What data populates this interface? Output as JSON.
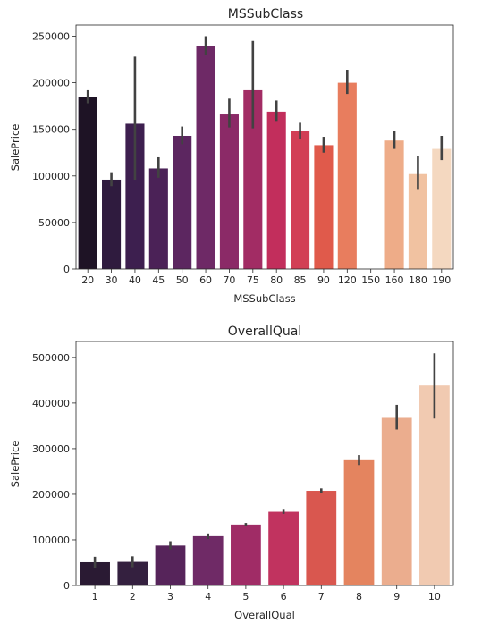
{
  "chart_data": [
    {
      "type": "bar",
      "title": "MSSubClass",
      "xlabel": "MSSubClass",
      "ylabel": "SalePrice",
      "ylim": [
        0,
        262000
      ],
      "yticks": [
        0,
        50000,
        100000,
        150000,
        200000,
        250000
      ],
      "categories": [
        "20",
        "30",
        "40",
        "45",
        "50",
        "60",
        "70",
        "75",
        "80",
        "85",
        "90",
        "120",
        "150",
        "160",
        "180",
        "190"
      ],
      "values": [
        185000,
        96000,
        156000,
        108000,
        143000,
        239000,
        166000,
        192000,
        169000,
        148000,
        133000,
        200000,
        null,
        138000,
        102000,
        129000
      ],
      "ci_low": [
        178000,
        89000,
        96000,
        98000,
        134000,
        230000,
        152000,
        151000,
        159000,
        140000,
        125000,
        188000,
        null,
        129000,
        85000,
        117000
      ],
      "ci_high": [
        192000,
        104000,
        228000,
        120000,
        153000,
        250000,
        183000,
        245000,
        181000,
        157000,
        142000,
        214000,
        null,
        148000,
        121000,
        143000
      ],
      "colors": [
        "#1e1325",
        "#2f1b3e",
        "#3d1f4f",
        "#4b2257",
        "#5c2660",
        "#6e2966",
        "#8b2a67",
        "#a22c64",
        "#c22e5c",
        "#d23f55",
        "#e05a4b",
        "#e87d5e",
        "#eb9770",
        "#eeac88",
        "#f1c2a1",
        "#f4d8c0"
      ],
      "grid": false
    },
    {
      "type": "bar",
      "title": "OverallQual",
      "xlabel": "OverallQual",
      "ylabel": "SalePrice",
      "ylim": [
        0,
        535000
      ],
      "yticks": [
        0,
        100000,
        200000,
        300000,
        400000,
        500000
      ],
      "categories": [
        "1",
        "2",
        "3",
        "4",
        "5",
        "6",
        "7",
        "8",
        "9",
        "10"
      ],
      "values": [
        51000,
        51800,
        87500,
        108000,
        133500,
        161600,
        207700,
        274700,
        367500,
        438600
      ],
      "ci_low": [
        38000,
        40000,
        79000,
        102000,
        130000,
        157000,
        202000,
        264000,
        342000,
        366000
      ],
      "ci_high": [
        63000,
        64000,
        97000,
        114000,
        137000,
        166000,
        213000,
        286000,
        396000,
        509000
      ],
      "colors": [
        "#2a1a33",
        "#34203f",
        "#56245a",
        "#6f2a66",
        "#a02c66",
        "#c1335f",
        "#d9574f",
        "#e4845f",
        "#ebad8e",
        "#f1cab1"
      ],
      "grid": false
    }
  ]
}
